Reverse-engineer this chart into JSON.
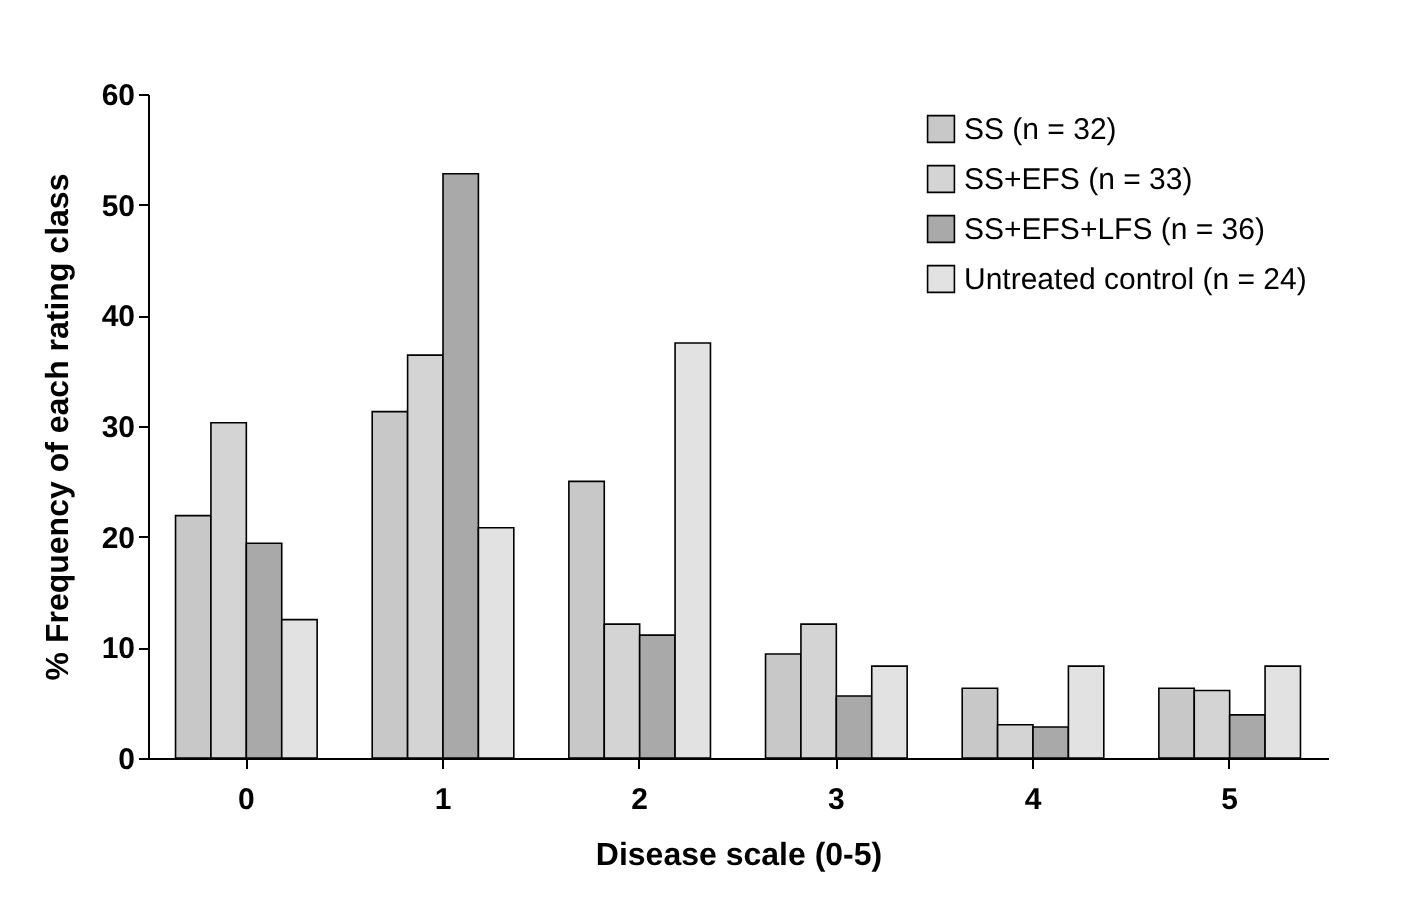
{
  "chart_data": {
    "type": "bar",
    "xlabel": "Disease scale (0-5)",
    "ylabel": "% Frequency of each rating class",
    "categories": [
      "0",
      "1",
      "2",
      "3",
      "4",
      "5"
    ],
    "series": [
      {
        "name": "SS (n = 32)",
        "color": "#c8c8c8",
        "values": [
          21.9,
          31.3,
          25,
          9.4,
          6.3,
          6.3
        ]
      },
      {
        "name": "SS+EFS (n = 33)",
        "color": "#d4d4d4",
        "values": [
          30.3,
          36.4,
          12.1,
          12.1,
          3.0,
          6.1
        ]
      },
      {
        "name": "SS+EFS+LFS (n = 36)",
        "color": "#a9a9a9",
        "values": [
          19.4,
          52.8,
          11.1,
          5.6,
          2.8,
          3.9
        ]
      },
      {
        "name": "Untreated control (n = 24)",
        "color": "#e2e2e2",
        "values": [
          12.5,
          20.8,
          37.5,
          8.3,
          8.3,
          8.3
        ]
      }
    ],
    "ylim": [
      0,
      60
    ],
    "yticks": [
      0,
      10,
      20,
      30,
      40,
      50,
      60
    ],
    "grid": false,
    "legend": "top right"
  }
}
